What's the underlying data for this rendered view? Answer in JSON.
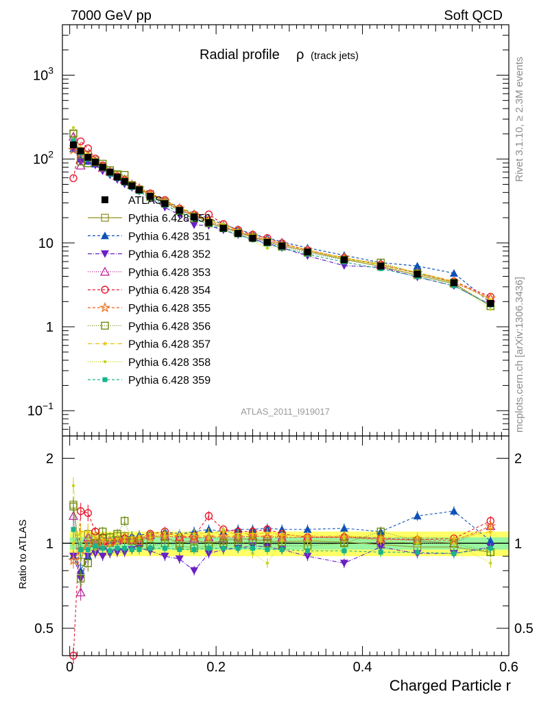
{
  "header": {
    "left": "7000 GeV pp",
    "right": "Soft QCD"
  },
  "side": {
    "top": "Rivet 3.1.10, ≥ 2.3M events",
    "bottom": "mcplots.cern.ch [arXiv:1306.3436]"
  },
  "colors": {
    "ratio_band_inner": "#99f59f",
    "ratio_band_outer": "#ffff66"
  },
  "chart_data": {
    "type": "line",
    "title_main": "Radial profile",
    "title_symbol": "ρ",
    "title_sub": "(track jets)",
    "analysis_label": "ATLAS_2011_I919017",
    "xlabel": "Charged Particle r",
    "ratio_ylabel": "Ratio to ATLAS",
    "xlim": [
      -0.01,
      0.6
    ],
    "ylim": [
      0.05,
      4000
    ],
    "yscale": "log",
    "ratio_ylim": [
      0.4,
      2.4
    ],
    "ratio_yscale": "log",
    "xticks": [
      0,
      0.2,
      0.4,
      0.6
    ],
    "xtick_labels": [
      "0",
      "0.2",
      "0.4",
      "0.6"
    ],
    "yticks": [
      0.1,
      1,
      10,
      100,
      1000
    ],
    "ytick_labels": [
      {
        "base": "10",
        "exp": "−1"
      },
      {
        "base": "1",
        "exp": ""
      },
      {
        "base": "10",
        "exp": ""
      },
      {
        "base": "10",
        "exp": "2"
      },
      {
        "base": "10",
        "exp": "3"
      }
    ],
    "ratio_yticks": [
      0.5,
      1,
      2
    ],
    "ratio_ytick_labels": [
      "0.5",
      "1",
      "2"
    ],
    "x": [
      0.005,
      0.015,
      0.025,
      0.035,
      0.045,
      0.055,
      0.065,
      0.075,
      0.085,
      0.095,
      0.11,
      0.13,
      0.15,
      0.17,
      0.19,
      0.21,
      0.23,
      0.25,
      0.27,
      0.29,
      0.325,
      0.375,
      0.425,
      0.475,
      0.525,
      0.575
    ],
    "reference": {
      "name": "ATLAS",
      "values": [
        148,
        125,
        105,
        92,
        80,
        70,
        61,
        54,
        48,
        43,
        36,
        29.5,
        24.5,
        20.5,
        17.5,
        15.0,
        13.0,
        11.4,
        10.2,
        9.2,
        7.8,
        6.3,
        5.3,
        4.25,
        3.35,
        1.9
      ]
    },
    "legend_position": "left-middle",
    "series": [
      {
        "name": "Pythia 6.428 350",
        "color": "#999933",
        "marker": "square-open",
        "dash": "solid",
        "ratio": [
          1.37,
          0.86,
          1.08,
          1.05,
          1.02,
          1.05,
          1.06,
          1.06,
          1.02,
          1.01,
          1.06,
          1.05,
          1.0,
          1.03,
          1.0,
          1.02,
          1.04,
          1.03,
          1.02,
          1.01,
          1.02,
          1.01,
          0.99,
          0.97,
          0.97,
          0.93
        ]
      },
      {
        "name": "Pythia 6.428 351",
        "color": "#0e51b8",
        "marker": "triangle-up",
        "dash": "4,3",
        "ratio": [
          0.9,
          0.8,
          0.9,
          0.95,
          0.98,
          1.0,
          1.02,
          1.05,
          1.06,
          1.07,
          1.08,
          1.1,
          1.08,
          1.1,
          1.12,
          1.1,
          1.12,
          1.12,
          1.13,
          1.12,
          1.12,
          1.13,
          1.1,
          1.25,
          1.3,
          1.02
        ]
      },
      {
        "name": "Pythia 6.428 352",
        "color": "#6a1fc4",
        "marker": "triangle-down",
        "dash": "6,2,1,2",
        "ratio": [
          0.9,
          0.75,
          0.9,
          0.92,
          0.9,
          0.92,
          0.93,
          0.93,
          0.95,
          0.96,
          0.94,
          0.9,
          0.88,
          0.8,
          0.92,
          0.95,
          0.96,
          0.98,
          0.97,
          0.95,
          0.9,
          0.85,
          0.97,
          0.92,
          0.92,
          0.97
        ]
      },
      {
        "name": "Pythia 6.428 353",
        "color": "#b8259b",
        "marker": "triangle-up-open",
        "dash": "1,2",
        "ratio": [
          1.25,
          0.67,
          1.05,
          1.0,
          0.98,
          1.02,
          1.03,
          1.05,
          1.03,
          1.04,
          1.07,
          1.06,
          1.05,
          1.04,
          1.05,
          1.04,
          1.05,
          1.06,
          1.06,
          1.05,
          1.05,
          1.06,
          1.04,
          1.02,
          1.0,
          1.15
        ]
      },
      {
        "name": "Pythia 6.428 354",
        "color": "#e8162b",
        "marker": "circle-open",
        "dash": "4,3",
        "ratio": [
          0.4,
          1.3,
          1.28,
          1.1,
          1.05,
          1.0,
          1.02,
          1.04,
          1.02,
          1.02,
          1.08,
          1.1,
          1.05,
          1.06,
          1.25,
          1.12,
          1.1,
          1.1,
          1.12,
          1.08,
          1.05,
          1.05,
          1.04,
          1.03,
          1.04,
          1.2
        ]
      },
      {
        "name": "Pythia 6.428 355",
        "color": "#ec7323",
        "marker": "star-open",
        "dash": "4,3",
        "ratio": [
          0.87,
          0.95,
          1.0,
          1.02,
          1.0,
          1.01,
          1.02,
          1.03,
          1.03,
          1.04,
          1.05,
          1.06,
          1.05,
          1.05,
          1.05,
          1.06,
          1.05,
          1.06,
          1.05,
          1.05,
          1.05,
          1.05,
          1.03,
          1.03,
          1.02,
          1.15
        ]
      },
      {
        "name": "Pythia 6.428 356",
        "color": "#6c8c0e",
        "marker": "square-open",
        "dash": "1,2",
        "ratio": [
          1.35,
          0.75,
          0.85,
          1.0,
          1.1,
          1.05,
          1.08,
          1.2,
          1.02,
          1.0,
          0.98,
          1.0,
          0.98,
          0.96,
          0.98,
          1.0,
          1.0,
          1.02,
          1.0,
          0.98,
          0.98,
          1.0,
          1.1,
          1.02,
          1.0,
          0.93
        ]
      },
      {
        "name": "Pythia 6.428 357",
        "color": "#e7c10c",
        "marker": "star-small",
        "dash": "6,2,1,2",
        "ratio": [
          1.0,
          1.1,
          1.1,
          1.05,
          1.03,
          1.03,
          1.04,
          1.05,
          1.05,
          1.06,
          1.08,
          1.09,
          1.08,
          1.08,
          1.09,
          1.1,
          1.08,
          1.08,
          1.09,
          1.07,
          1.06,
          1.06,
          1.05,
          1.05,
          1.04,
          1.1
        ]
      },
      {
        "name": "Pythia 6.428 358",
        "color": "#c7d11d",
        "marker": "dot",
        "dash": "1,2",
        "ratio": [
          1.6,
          1.0,
          0.95,
          0.95,
          0.98,
          0.98,
          1.0,
          1.02,
          1.02,
          1.04,
          1.05,
          1.06,
          1.07,
          1.08,
          1.05,
          1.12,
          1.06,
          0.92,
          0.85,
          1.02,
          1.02,
          1.04,
          1.02,
          1.0,
          1.0,
          0.85
        ]
      },
      {
        "name": "Pythia 6.428 359",
        "color": "#19b38c",
        "marker": "square-small",
        "dash": "4,3",
        "ratio": [
          1.12,
          0.95,
          0.95,
          0.98,
          0.96,
          0.94,
          0.96,
          0.96,
          0.95,
          0.95,
          0.96,
          0.96,
          0.95,
          0.95,
          0.96,
          0.96,
          0.96,
          0.96,
          0.95,
          0.95,
          0.94,
          0.94,
          0.93,
          0.93,
          0.92,
          0.96
        ]
      }
    ],
    "ratio_band_inner": [
      0.95,
      1.05
    ],
    "ratio_band_outer": [
      0.9,
      1.1
    ]
  }
}
